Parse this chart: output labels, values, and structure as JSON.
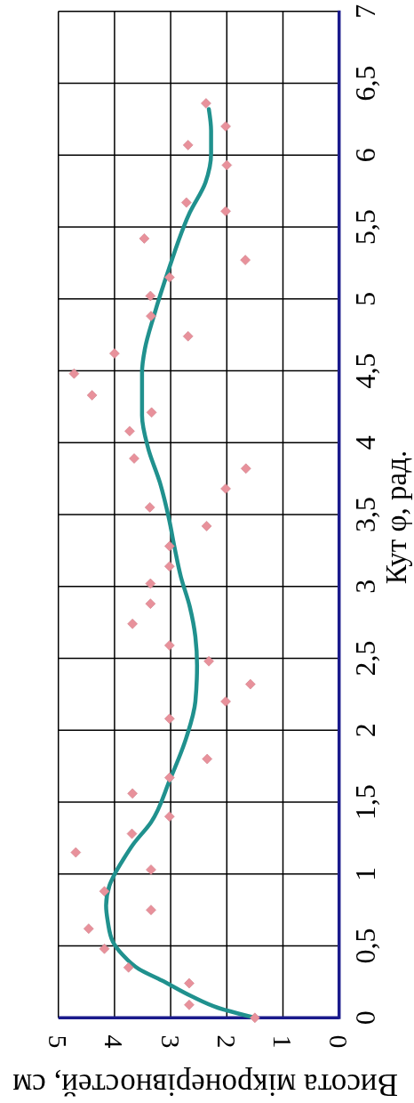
{
  "chart_data": {
    "type": "scatter",
    "xlabel": "Висота мікронерівностей, см",
    "ylabel": "Кут φ, рад.",
    "xlim": [
      5,
      0
    ],
    "xticks": [
      5,
      4,
      3,
      2,
      1,
      0
    ],
    "ylim": [
      0,
      7
    ],
    "yticks": [
      0,
      {
        "value": 0.5,
        "label": "0,5"
      },
      1,
      {
        "value": 1.5,
        "label": "1,5"
      },
      2,
      {
        "value": 2.5,
        "label": "2,5"
      },
      3,
      {
        "value": 3.5,
        "label": "3,5"
      },
      4,
      {
        "value": 4.5,
        "label": "4,5"
      },
      5,
      {
        "value": 5.5,
        "label": "5,5"
      },
      6,
      {
        "value": 6.5,
        "label": "6,5"
      },
      7
    ],
    "grid": true,
    "marker": "diamond",
    "series": [
      {
        "type": "scatter",
        "color": "#e8919b",
        "x": [
          1.5,
          2.67,
          2.67,
          3.75,
          4.18,
          4.46,
          3.35,
          4.18,
          3.35,
          4.69,
          3.69,
          3.02,
          3.68,
          3.02,
          2.35,
          3.02,
          2.02,
          1.58,
          2.32,
          3.02,
          3.68,
          3.36,
          3.36,
          3.02,
          3.02,
          2.36,
          3.37,
          2.02,
          1.66,
          3.65,
          3.73,
          3.34,
          4.4,
          4.72,
          4.0,
          2.69,
          3.35,
          3.36,
          3.02,
          1.67,
          3.47,
          2.02,
          2.72,
          2.0,
          2.69,
          2.02,
          2.37
        ],
        "values": [
          0,
          0.09,
          0.24,
          0.35,
          0.48,
          0.62,
          0.75,
          0.88,
          1.03,
          1.15,
          1.28,
          1.4,
          1.56,
          1.67,
          1.8,
          2.08,
          2.2,
          2.32,
          2.48,
          2.59,
          2.74,
          2.88,
          3.02,
          3.14,
          3.28,
          3.42,
          3.55,
          3.68,
          3.82,
          3.89,
          4.08,
          4.21,
          4.33,
          4.48,
          4.62,
          4.74,
          4.88,
          5.02,
          5.15,
          5.27,
          5.42,
          5.61,
          5.67,
          5.93,
          6.07,
          6.2,
          6.36
        ]
      },
      {
        "type": "line",
        "color": "#20918e",
        "marker": "none",
        "line_style": "solid",
        "x": [
          1.5,
          2.16,
          2.63,
          3.16,
          3.57,
          3.86,
          4.03,
          4.12,
          4.15,
          4.09,
          4.01,
          3.83,
          3.68,
          3.35,
          3.02,
          2.72,
          2.56,
          2.53,
          2.56,
          2.66,
          2.82,
          2.93,
          3.03,
          3.19,
          3.4,
          3.51,
          3.51,
          3.46,
          3.3,
          3.03,
          2.66,
          2.38,
          2.28,
          2.28,
          2.32
        ],
        "values": [
          0,
          0.07,
          0.15,
          0.26,
          0.34,
          0.44,
          0.53,
          0.67,
          0.78,
          0.92,
          0.99,
          1.11,
          1.2,
          1.36,
          1.65,
          1.95,
          2.2,
          2.45,
          2.65,
          2.86,
          3.07,
          3.27,
          3.47,
          3.72,
          3.96,
          4.19,
          4.49,
          4.65,
          4.88,
          5.21,
          5.6,
          5.81,
          6.01,
          6.17,
          6.32
        ]
      }
    ]
  }
}
